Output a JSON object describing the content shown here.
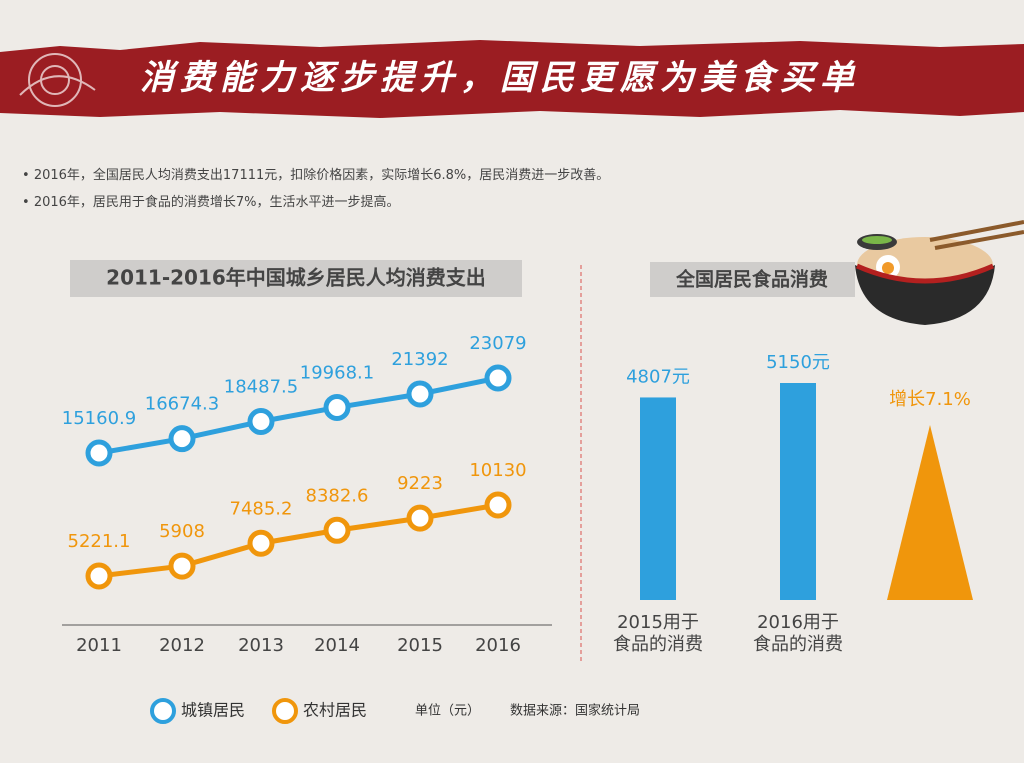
{
  "header": {
    "title": "消费能力逐步提升，国民更愿为美食买单"
  },
  "bullets": [
    "2016年，全国居民人均消费支出17111元，扣除价格因素，实际增长6.8%，居民消费进一步改善。",
    "2016年，居民用于食品的消费增长7%，生活水平进一步提高。"
  ],
  "chart_data": [
    {
      "type": "line",
      "title": "2011-2016年中国城乡居民人均消费支出",
      "categories": [
        "2011",
        "2012",
        "2013",
        "2014",
        "2015",
        "2016"
      ],
      "series": [
        {
          "name": "城镇居民",
          "color": "#2ea0dd",
          "values": [
            15160.9,
            16674.3,
            18487.5,
            19968.1,
            21392,
            23079
          ]
        },
        {
          "name": "农村居民",
          "color": "#f0960c",
          "values": [
            5221.1,
            5908,
            7485.2,
            8382.6,
            9223,
            10130
          ]
        }
      ],
      "unit_note": "单位（元）",
      "source": "数据来源：国家统计局"
    },
    {
      "type": "bar",
      "title": "全国居民食品消费",
      "categories": [
        "2015用于\n食品的消费",
        "2016用于\n食品的消费"
      ],
      "values": [
        4807,
        5150
      ],
      "value_labels": [
        "4807元",
        "5150元"
      ],
      "color": "#2ea0dd",
      "growth": {
        "value": 7.1,
        "label": "增长7.1%",
        "color": "#f0960c"
      }
    }
  ]
}
